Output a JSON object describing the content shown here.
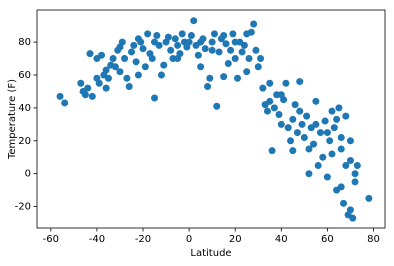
{
  "chart_data": {
    "type": "scatter",
    "x_label": "Latitude",
    "y_label": "Temperature (F)",
    "color": "#1f77b4",
    "x": [
      -56,
      -54,
      -47,
      -46,
      -45,
      -43,
      -42,
      -44,
      -40,
      -39,
      -38,
      -37,
      -36,
      -35,
      -34,
      -33,
      -32,
      -31,
      -30,
      -29,
      -28,
      -27,
      -26,
      -25,
      -24,
      -23,
      -22,
      -21,
      -20,
      -19,
      -18,
      -17,
      -16,
      -15,
      -14,
      -13,
      -12,
      -11,
      -10,
      -9,
      -8,
      -7,
      -6,
      -5,
      -4,
      -3,
      -2,
      -1,
      0,
      1,
      2,
      3,
      4,
      5,
      6,
      7,
      8,
      9,
      10,
      11,
      12,
      13,
      14,
      15,
      16,
      17,
      18,
      19,
      20,
      21,
      22,
      23,
      24,
      25,
      26,
      27,
      28,
      29,
      30,
      31,
      32,
      33,
      34,
      35,
      36,
      37,
      38,
      39,
      40,
      41,
      42,
      43,
      44,
      45,
      46,
      47,
      48,
      49,
      50,
      51,
      52,
      53,
      54,
      55,
      56,
      57,
      58,
      59,
      60,
      61,
      62,
      63,
      64,
      65,
      66,
      67,
      68,
      69,
      70,
      71,
      72,
      73,
      78,
      -30,
      -22,
      -15,
      -5,
      5,
      15,
      25,
      45,
      55,
      66,
      70,
      62,
      68,
      -40,
      -36,
      10,
      20,
      35,
      40,
      48,
      52,
      60,
      64,
      66,
      70,
      72
    ],
    "values": [
      47,
      43,
      55,
      50,
      48,
      73,
      47,
      52,
      58,
      55,
      72,
      60,
      63,
      58,
      66,
      70,
      65,
      75,
      62,
      80,
      70,
      58,
      53,
      74,
      78,
      68,
      82,
      80,
      76,
      65,
      85,
      73,
      70,
      46,
      84,
      78,
      60,
      66,
      80,
      83,
      75,
      70,
      82,
      78,
      73,
      85,
      80,
      77,
      80,
      84,
      93,
      78,
      72,
      65,
      82,
      76,
      53,
      58,
      80,
      85,
      41,
      74,
      82,
      59,
      79,
      67,
      75,
      85,
      70,
      58,
      80,
      74,
      78,
      62,
      70,
      86,
      91,
      75,
      65,
      70,
      52,
      42,
      38,
      55,
      14,
      40,
      48,
      36,
      30,
      45,
      55,
      28,
      20,
      33,
      42,
      25,
      56,
      30,
      22,
      35,
      0,
      28,
      18,
      44,
      5,
      25,
      10,
      32,
      -2,
      20,
      12,
      28,
      -10,
      40,
      15,
      -18,
      5,
      -25,
      20,
      -27,
      0,
      5,
      -15,
      77,
      60,
      80,
      70,
      80,
      84,
      85,
      14,
      30,
      -8,
      -22,
      38,
      35,
      70,
      52,
      75,
      80,
      44,
      48,
      38,
      15,
      25,
      33,
      22,
      8,
      -5
    ],
    "xlim": [
      -66,
      85
    ],
    "ylim": [
      -33,
      99.5
    ],
    "xticks": [
      -60,
      -40,
      -20,
      0,
      20,
      40,
      60,
      80
    ],
    "yticks": [
      -20,
      0,
      20,
      40,
      60,
      80
    ]
  }
}
